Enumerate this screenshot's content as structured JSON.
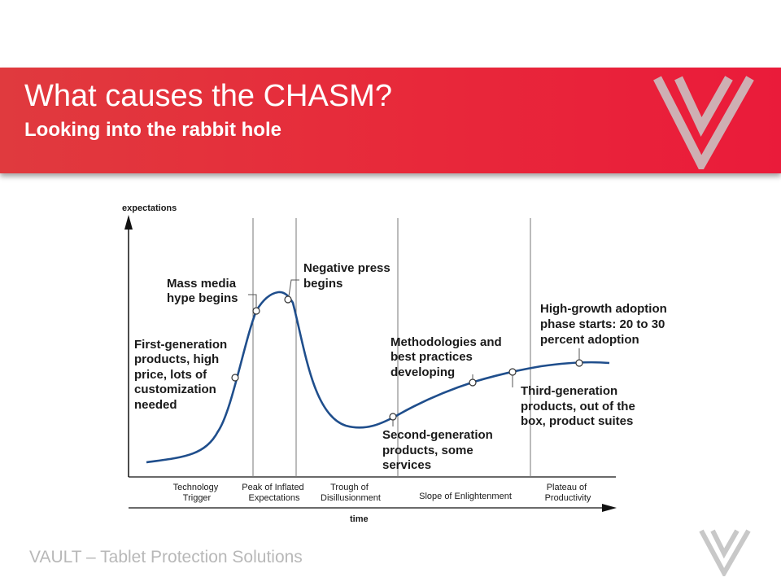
{
  "slide": {
    "title": "What causes the CHASM?",
    "subtitle": "Looking into the rabbit hole",
    "footer": "VAULT – Tablet Protection Solutions"
  },
  "colors": {
    "header_red": "#e8283a",
    "curve_blue": "#1f4e8c",
    "footer_gray": "#b8b8b8",
    "logo_gray": "#c8c8c8"
  },
  "icons": {
    "header_logo": "vault-v-logo-icon",
    "footer_logo": "vault-v-logo-icon"
  },
  "diagram": {
    "y_axis_label": "expectations",
    "x_axis_label": "time",
    "phases": [
      {
        "lines": [
          "Technology",
          "Trigger"
        ]
      },
      {
        "lines": [
          "Peak of Inflated",
          "Expectations"
        ]
      },
      {
        "lines": [
          "Trough of",
          "Disillusionment"
        ]
      },
      {
        "lines": [
          "Slope of Enlightenment"
        ]
      },
      {
        "lines": [
          "Plateau of",
          "Productivity"
        ]
      }
    ],
    "annotations": [
      {
        "lines": [
          "First-generation",
          "products, high",
          "price, lots of",
          "customization",
          "needed"
        ]
      },
      {
        "lines": [
          "Mass media",
          "hype begins"
        ]
      },
      {
        "lines": [
          "Negative press",
          "begins"
        ]
      },
      {
        "lines": [
          "Methodologies and",
          "best practices",
          "developing"
        ]
      },
      {
        "lines": [
          "Second-generation",
          "products, some",
          "services"
        ]
      },
      {
        "lines": [
          "High-growth adoption",
          "phase starts: 20 to 30",
          "percent adoption"
        ]
      },
      {
        "lines": [
          "Third-generation",
          "products, out of the",
          "box, product suites"
        ]
      }
    ]
  }
}
